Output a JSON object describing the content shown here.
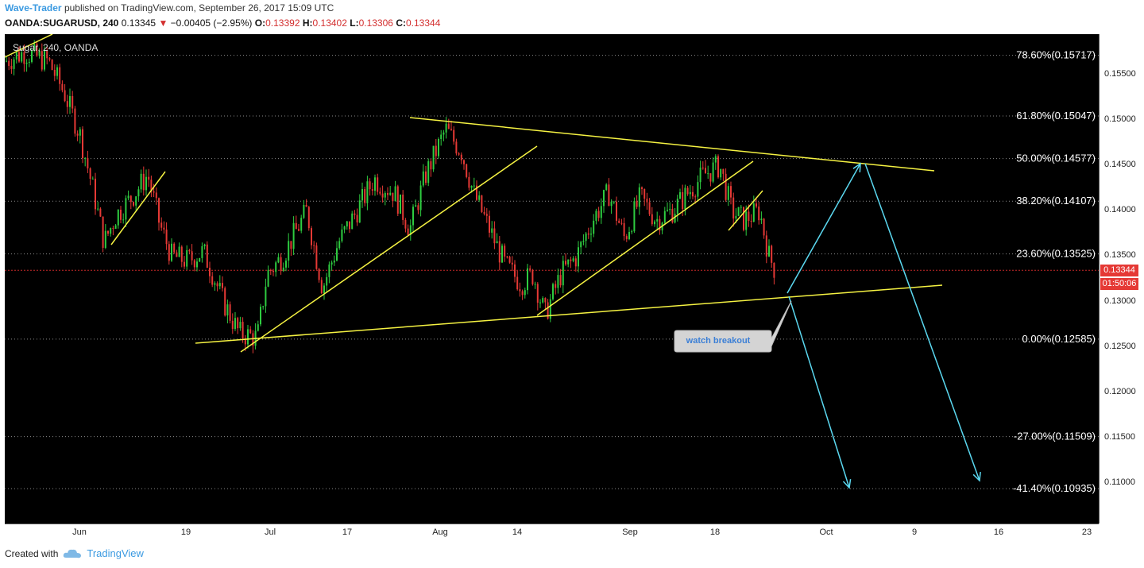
{
  "header": {
    "author": "Wave-Trader",
    "published_text": "published on TradingView.com, September 26, 2017 15:09 UTC",
    "symbol": "OANDA:SUGARUSD, 240",
    "last": "0.13345",
    "change_arrow": "▼",
    "change": "−0.00405 (−2.95%)",
    "o_label": "O:",
    "o_value": "0.13392",
    "h_label": "H:",
    "h_value": "0.13402",
    "l_label": "L:",
    "l_value": "0.13306",
    "c_label": "C:",
    "c_value": "0.13344"
  },
  "chart_title": "Sugar, 240, OANDA",
  "current_price_tag": "0.13344",
  "countdown_tag": "01:50:06",
  "annotation": "watch breakout",
  "footer": {
    "created_with": "Created with",
    "brand": "TradingView"
  },
  "colors": {
    "background": "#000000",
    "up_candle": "#2ecc40",
    "down_candle": "#e53935",
    "trendline": "#f5f242",
    "arrow": "#5bd8f0",
    "grid": "#8a8a8a",
    "price_tag": "#e53935"
  },
  "chart_data": {
    "type": "candlestick",
    "title": "Sugar, 240, OANDA",
    "ylim": [
      0.1055,
      0.1595
    ],
    "y_ticks": [
      "0.15500",
      "0.15000",
      "0.14500",
      "0.14000",
      "0.13500",
      "0.13000",
      "0.12500",
      "0.12000",
      "0.11500",
      "0.11000"
    ],
    "x_ticks": [
      "Jun",
      "19",
      "Jul",
      "17",
      "Aug",
      "14",
      "Sep",
      "18",
      "Oct",
      "9",
      "16",
      "23"
    ],
    "fib_levels": [
      {
        "label": "78.60%(0.15717)",
        "value": 0.15717
      },
      {
        "label": "61.80%(0.15047)",
        "value": 0.15047
      },
      {
        "label": "50.00%(0.14577)",
        "value": 0.14577
      },
      {
        "label": "38.20%(0.14107)",
        "value": 0.14107
      },
      {
        "label": "23.60%(0.13525)",
        "value": 0.13525
      },
      {
        "label": "0.00%(0.12585)",
        "value": 0.12585
      },
      {
        "label": "-27.00%(0.11509)",
        "value": 0.11509
      },
      {
        "label": "-41.40%(0.10935)",
        "value": 0.10935
      }
    ],
    "current_price": 0.13344,
    "price_path": [
      [
        0,
        0.1565
      ],
      [
        25,
        0.1575
      ],
      [
        55,
        0.1565
      ],
      [
        75,
        0.153
      ],
      [
        95,
        0.1483
      ],
      [
        112,
        0.142
      ],
      [
        125,
        0.1365
      ],
      [
        140,
        0.1395
      ],
      [
        160,
        0.1415
      ],
      [
        180,
        0.144
      ],
      [
        195,
        0.1385
      ],
      [
        210,
        0.135
      ],
      [
        230,
        0.1345
      ],
      [
        250,
        0.1355
      ],
      [
        262,
        0.133
      ],
      [
        275,
        0.13
      ],
      [
        295,
        0.1265
      ],
      [
        318,
        0.126
      ],
      [
        330,
        0.133
      ],
      [
        350,
        0.135
      ],
      [
        380,
        0.14
      ],
      [
        400,
        0.1315
      ],
      [
        420,
        0.1365
      ],
      [
        440,
        0.1395
      ],
      [
        465,
        0.1435
      ],
      [
        490,
        0.142
      ],
      [
        510,
        0.138
      ],
      [
        530,
        0.144
      ],
      [
        555,
        0.149
      ],
      [
        575,
        0.1465
      ],
      [
        590,
        0.142
      ],
      [
        610,
        0.138
      ],
      [
        630,
        0.134
      ],
      [
        650,
        0.132
      ],
      [
        665,
        0.133
      ],
      [
        680,
        0.1285
      ],
      [
        700,
        0.133
      ],
      [
        720,
        0.135
      ],
      [
        740,
        0.139
      ],
      [
        760,
        0.142
      ],
      [
        780,
        0.137
      ],
      [
        800,
        0.1415
      ],
      [
        820,
        0.139
      ],
      [
        840,
        0.14
      ],
      [
        860,
        0.142
      ],
      [
        880,
        0.144
      ],
      [
        900,
        0.145
      ],
      [
        915,
        0.14
      ],
      [
        930,
        0.139
      ],
      [
        950,
        0.14
      ],
      [
        962,
        0.135
      ],
      [
        970,
        0.1334
      ]
    ]
  }
}
